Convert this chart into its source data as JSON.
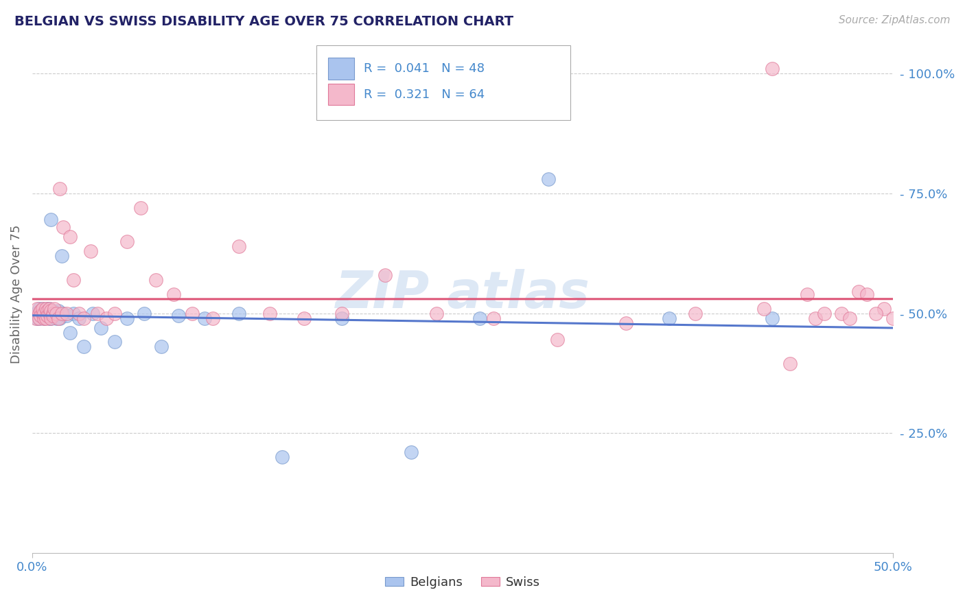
{
  "title": "BELGIAN VS SWISS DISABILITY AGE OVER 75 CORRELATION CHART",
  "source_text": "Source: ZipAtlas.com",
  "ylabel": "Disability Age Over 75",
  "xlim": [
    0.0,
    0.5
  ],
  "ylim": [
    0.0,
    1.08
  ],
  "ytick_labels": [
    "25.0%",
    "50.0%",
    "75.0%",
    "100.0%"
  ],
  "ytick_values": [
    0.25,
    0.5,
    0.75,
    1.0
  ],
  "belgians_R": 0.041,
  "belgians_N": 48,
  "swiss_R": 0.321,
  "swiss_N": 64,
  "belgian_color": "#aac4ee",
  "swiss_color": "#f4b8cb",
  "belgian_edge_color": "#7799cc",
  "swiss_edge_color": "#e07898",
  "belgian_line_color": "#5577cc",
  "swiss_line_color": "#dd5577",
  "title_color": "#222266",
  "axis_label_color": "#4488cc",
  "watermark_color": "#dde8f5",
  "background_color": "#ffffff",
  "grid_color": "#cccccc",
  "legend_box_color": "#aaaaaa",
  "source_color": "#aaaaaa",
  "belgians_x": [
    0.002,
    0.003,
    0.004,
    0.004,
    0.005,
    0.005,
    0.006,
    0.006,
    0.007,
    0.007,
    0.008,
    0.008,
    0.009,
    0.009,
    0.01,
    0.01,
    0.01,
    0.011,
    0.011,
    0.012,
    0.012,
    0.013,
    0.014,
    0.015,
    0.016,
    0.017,
    0.018,
    0.02,
    0.022,
    0.024,
    0.027,
    0.03,
    0.035,
    0.04,
    0.048,
    0.055,
    0.065,
    0.075,
    0.085,
    0.1,
    0.12,
    0.145,
    0.18,
    0.22,
    0.26,
    0.3,
    0.37,
    0.43
  ],
  "belgians_y": [
    0.5,
    0.49,
    0.51,
    0.49,
    0.505,
    0.495,
    0.5,
    0.51,
    0.49,
    0.5,
    0.505,
    0.495,
    0.5,
    0.51,
    0.49,
    0.51,
    0.5,
    0.695,
    0.49,
    0.505,
    0.495,
    0.5,
    0.49,
    0.505,
    0.49,
    0.62,
    0.5,
    0.495,
    0.46,
    0.5,
    0.49,
    0.43,
    0.5,
    0.47,
    0.44,
    0.49,
    0.5,
    0.43,
    0.495,
    0.49,
    0.5,
    0.2,
    0.49,
    0.21,
    0.49,
    0.78,
    0.49,
    0.49
  ],
  "swiss_x": [
    0.002,
    0.003,
    0.004,
    0.004,
    0.005,
    0.005,
    0.006,
    0.006,
    0.007,
    0.007,
    0.008,
    0.008,
    0.009,
    0.009,
    0.01,
    0.01,
    0.011,
    0.011,
    0.012,
    0.012,
    0.013,
    0.014,
    0.015,
    0.016,
    0.017,
    0.018,
    0.02,
    0.022,
    0.024,
    0.027,
    0.03,
    0.034,
    0.038,
    0.043,
    0.048,
    0.055,
    0.063,
    0.072,
    0.082,
    0.093,
    0.105,
    0.12,
    0.138,
    0.158,
    0.18,
    0.205,
    0.235,
    0.268,
    0.305,
    0.345,
    0.385,
    0.425,
    0.455,
    0.48,
    0.495,
    0.5,
    0.49,
    0.485,
    0.47,
    0.475,
    0.46,
    0.45,
    0.44,
    0.43
  ],
  "swiss_y": [
    0.49,
    0.51,
    0.5,
    0.49,
    0.505,
    0.495,
    0.5,
    0.51,
    0.49,
    0.5,
    0.51,
    0.49,
    0.505,
    0.495,
    0.5,
    0.51,
    0.49,
    0.505,
    0.5,
    0.495,
    0.51,
    0.5,
    0.49,
    0.76,
    0.5,
    0.68,
    0.5,
    0.66,
    0.57,
    0.5,
    0.49,
    0.63,
    0.5,
    0.49,
    0.5,
    0.65,
    0.72,
    0.57,
    0.54,
    0.5,
    0.49,
    0.64,
    0.5,
    0.49,
    0.5,
    0.58,
    0.5,
    0.49,
    0.445,
    0.48,
    0.5,
    0.51,
    0.49,
    0.545,
    0.51,
    0.49,
    0.5,
    0.54,
    0.5,
    0.49,
    0.5,
    0.54,
    0.395,
    1.01
  ]
}
